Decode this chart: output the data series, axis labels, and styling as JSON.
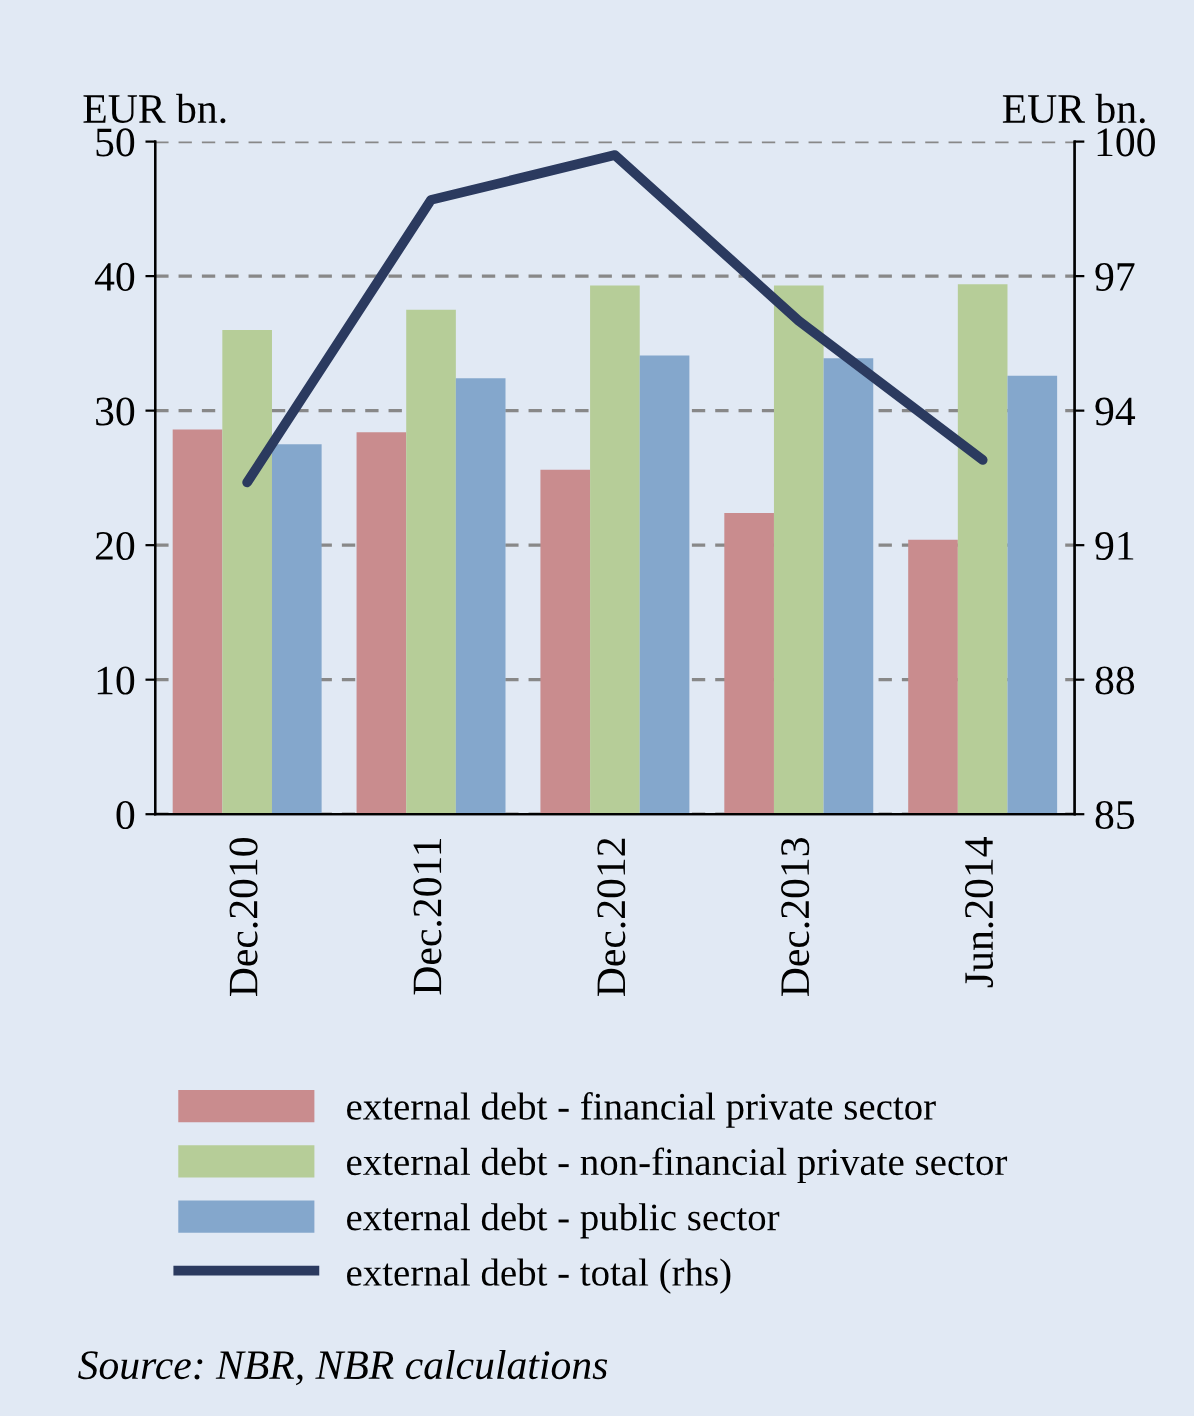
{
  "chart_data": {
    "type": "bar",
    "ylabel": "EUR bn.",
    "y2label": "EUR bn.",
    "categories": [
      "Dec.2010",
      "Dec.2011",
      "Dec.2012",
      "Dec.2013",
      "Jun.2014"
    ],
    "series": [
      {
        "name": "external debt - financial private sector",
        "color": "#c98c8e",
        "values": [
          28.6,
          28.4,
          25.6,
          22.4,
          20.4
        ]
      },
      {
        "name": "external debt - non-financial private sector",
        "color": "#b6cd98",
        "values": [
          36.0,
          37.5,
          39.3,
          39.3,
          39.4
        ]
      },
      {
        "name": "external debt - public sector",
        "color": "#84a7cc",
        "values": [
          27.5,
          32.4,
          34.1,
          33.9,
          32.6
        ]
      },
      {
        "name": "external debt - total (rhs)",
        "color": "#2b3a5f",
        "type": "line",
        "axis": "y2",
        "values": [
          92.4,
          98.7,
          99.7,
          96.0,
          92.9
        ]
      }
    ],
    "ylim": [
      0,
      50
    ],
    "yticks": [
      0,
      10,
      20,
      30,
      40,
      50
    ],
    "y2lim": [
      85,
      100
    ],
    "y2ticks": [
      85,
      88,
      91,
      94,
      97,
      100
    ],
    "grid": "y",
    "legend": "bottom",
    "line_style": "solid",
    "annotations": [
      "Source: NBR, NBR calculations"
    ]
  }
}
